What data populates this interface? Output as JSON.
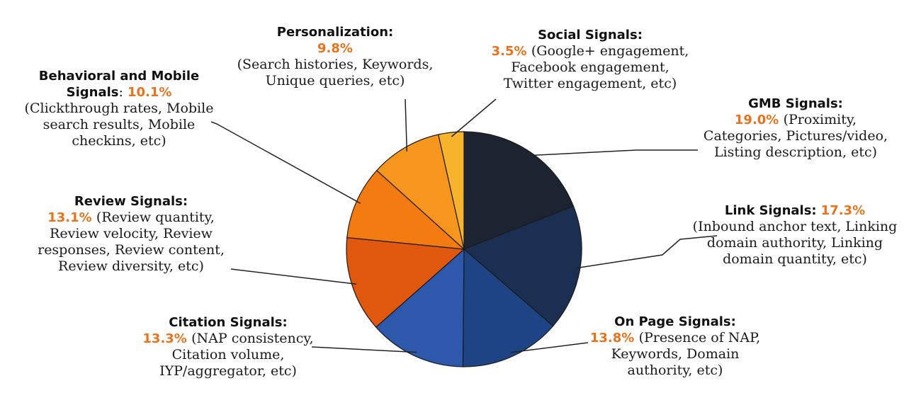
{
  "colors": {
    "accent": "#e8731c",
    "leader": "#222222",
    "slice_border": "#1a1a1a"
  },
  "chart_data": {
    "type": "pie",
    "title": "",
    "start": "12 o'clock",
    "direction": "clockwise",
    "slices": [
      {
        "name": "GMB Signals",
        "heading": "GMB Signals:",
        "value": 19.0,
        "percent": "19.0%",
        "color": "#1c2431",
        "lines": [
          [
            "19.0% ",
            "(Proximity,"
          ],
          [
            "",
            "Categories, Pictures/video,"
          ],
          [
            "",
            "Listing description, etc)"
          ]
        ]
      },
      {
        "name": "Link Signals",
        "heading": "Link Signals:",
        "value": 17.3,
        "percent": "17.3%",
        "color": "#1b2f52",
        "lines": [
          [
            "",
            "(Inbound anchor text, Linking"
          ],
          [
            "",
            "domain authority, Linking"
          ],
          [
            "",
            "domain quantity, etc)"
          ]
        ]
      },
      {
        "name": "On Page Signals",
        "heading": "On Page Signals:",
        "value": 13.8,
        "percent": "13.8%",
        "color": "#1e4486",
        "lines": [
          [
            "13.8% ",
            "(Presence of NAP,"
          ],
          [
            "",
            "Keywords, Domain"
          ],
          [
            "",
            "authority, etc)"
          ]
        ]
      },
      {
        "name": "Citation Signals",
        "heading": "Citation Signals:",
        "value": 13.3,
        "percent": "13.3%",
        "color": "#2e58ac",
        "lines": [
          [
            "13.3% ",
            "(NAP consistency,"
          ],
          [
            "",
            "Citation volume,"
          ],
          [
            "",
            "IYP/aggregator, etc)"
          ]
        ]
      },
      {
        "name": "Review Signals",
        "heading": "Review Signals:",
        "value": 13.1,
        "percent": "13.1%",
        "color": "#e0580e",
        "lines": [
          [
            "13.1% ",
            "(Review quantity,"
          ],
          [
            "",
            "Review velocity, Review"
          ],
          [
            "",
            "responses, Review content,"
          ],
          [
            "",
            "Review diversity, etc)"
          ]
        ]
      },
      {
        "name": "Behavioral and Mobile Signals",
        "heading": "Behavioral and Mobile",
        "value": 10.1,
        "percent": "10.1%",
        "color": "#f47a12",
        "lines": [
          [
            "",
            "(Clickthrough rates, Mobile"
          ],
          [
            "",
            "search results, Mobile"
          ],
          [
            "",
            "checkins, etc)"
          ]
        ]
      },
      {
        "name": "Personalization",
        "heading": "Personalization:",
        "value": 9.8,
        "percent": "9.8%",
        "color": "#f6961e",
        "lines": [
          [
            "9.8%",
            ""
          ],
          [
            "",
            "(Search histories, Keywords,"
          ],
          [
            "",
            "Unique queries, etc)"
          ]
        ]
      },
      {
        "name": "Social Signals",
        "heading": "Social Signals:",
        "value": 3.5,
        "percent": "3.5%",
        "color": "#f8b32c",
        "lines": [
          [
            "3.5% ",
            "(Google+ engagement,"
          ],
          [
            "",
            "Facebook engagement,"
          ],
          [
            "",
            "Twitter engagement, etc)"
          ]
        ]
      }
    ]
  },
  "labels": {
    "behavioral_line2_word": "Signals",
    "behavioral_sep": ": "
  }
}
